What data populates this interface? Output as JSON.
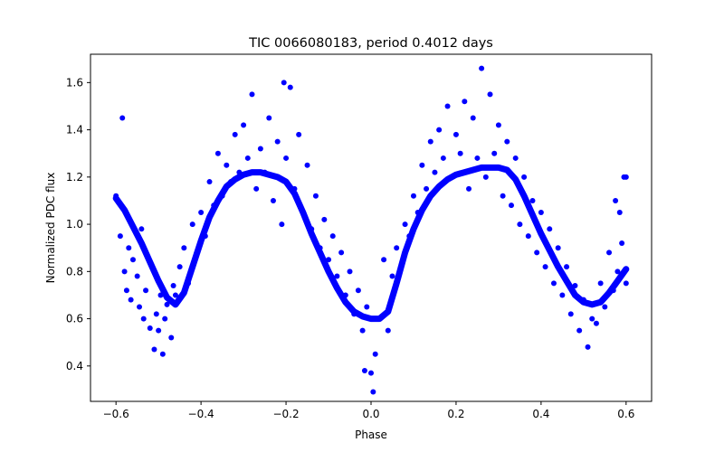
{
  "chart_data": {
    "type": "scatter",
    "title": "TIC 0066080183, period 0.4012 days",
    "xlabel": "Phase",
    "ylabel": "Normalized PDC flux",
    "xlim": [
      -0.66,
      0.66
    ],
    "ylim": [
      0.25,
      1.72
    ],
    "xticks": [
      -0.6,
      -0.4,
      -0.2,
      0.0,
      0.2,
      0.4,
      0.6
    ],
    "xtick_labels": [
      "−0.6",
      "−0.4",
      "−0.2",
      "0.0",
      "0.2",
      "0.4",
      "0.6"
    ],
    "yticks": [
      0.4,
      0.6,
      0.8,
      1.0,
      1.2,
      1.4,
      1.6
    ],
    "ytick_labels": [
      "0.4",
      "0.6",
      "0.8",
      "1.0",
      "1.2",
      "1.4",
      "1.6"
    ],
    "grid": false,
    "legend": "none",
    "marker_color": "#0000ff",
    "series": [
      {
        "kind": "scatter",
        "points": [
          [
            -0.6,
            1.12
          ],
          [
            -0.59,
            0.95
          ],
          [
            -0.585,
            1.45
          ],
          [
            -0.58,
            0.8
          ],
          [
            -0.575,
            0.72
          ],
          [
            -0.57,
            0.9
          ],
          [
            -0.565,
            0.68
          ],
          [
            -0.56,
            0.85
          ],
          [
            -0.55,
            0.78
          ],
          [
            -0.545,
            0.65
          ],
          [
            -0.54,
            0.98
          ],
          [
            -0.535,
            0.6
          ],
          [
            -0.53,
            0.72
          ],
          [
            -0.52,
            0.56
          ],
          [
            -0.515,
            0.82
          ],
          [
            -0.51,
            0.47
          ],
          [
            -0.505,
            0.62
          ],
          [
            -0.5,
            0.55
          ],
          [
            -0.495,
            0.7
          ],
          [
            -0.49,
            0.45
          ],
          [
            -0.485,
            0.6
          ],
          [
            -0.48,
            0.66
          ],
          [
            -0.47,
            0.52
          ],
          [
            -0.465,
            0.74
          ],
          [
            -0.46,
            0.7
          ],
          [
            -0.45,
            0.82
          ],
          [
            -0.44,
            0.9
          ],
          [
            -0.43,
            0.75
          ],
          [
            -0.42,
            1.0
          ],
          [
            -0.41,
            0.88
          ],
          [
            -0.4,
            1.05
          ],
          [
            -0.39,
            0.95
          ],
          [
            -0.38,
            1.18
          ],
          [
            -0.37,
            1.08
          ],
          [
            -0.36,
            1.3
          ],
          [
            -0.35,
            1.12
          ],
          [
            -0.34,
            1.25
          ],
          [
            -0.33,
            1.18
          ],
          [
            -0.32,
            1.38
          ],
          [
            -0.31,
            1.22
          ],
          [
            -0.3,
            1.42
          ],
          [
            -0.29,
            1.28
          ],
          [
            -0.28,
            1.55
          ],
          [
            -0.27,
            1.15
          ],
          [
            -0.26,
            1.32
          ],
          [
            -0.25,
            1.22
          ],
          [
            -0.24,
            1.45
          ],
          [
            -0.23,
            1.1
          ],
          [
            -0.22,
            1.35
          ],
          [
            -0.21,
            1.0
          ],
          [
            -0.205,
            1.6
          ],
          [
            -0.2,
            1.28
          ],
          [
            -0.19,
            1.58
          ],
          [
            -0.18,
            1.15
          ],
          [
            -0.17,
            1.38
          ],
          [
            -0.16,
            1.05
          ],
          [
            -0.15,
            1.25
          ],
          [
            -0.14,
            0.98
          ],
          [
            -0.13,
            1.12
          ],
          [
            -0.12,
            0.9
          ],
          [
            -0.11,
            1.02
          ],
          [
            -0.1,
            0.85
          ],
          [
            -0.09,
            0.95
          ],
          [
            -0.08,
            0.78
          ],
          [
            -0.07,
            0.88
          ],
          [
            -0.06,
            0.7
          ],
          [
            -0.05,
            0.8
          ],
          [
            -0.04,
            0.62
          ],
          [
            -0.03,
            0.72
          ],
          [
            -0.02,
            0.55
          ],
          [
            -0.015,
            0.38
          ],
          [
            -0.01,
            0.65
          ],
          [
            0.0,
            0.37
          ],
          [
            0.005,
            0.29
          ],
          [
            0.01,
            0.45
          ],
          [
            0.02,
            0.6
          ],
          [
            0.03,
            0.85
          ],
          [
            0.04,
            0.55
          ],
          [
            0.05,
            0.78
          ],
          [
            0.06,
            0.9
          ],
          [
            0.07,
            0.82
          ],
          [
            0.08,
            1.0
          ],
          [
            0.09,
            0.95
          ],
          [
            0.1,
            1.12
          ],
          [
            0.11,
            1.05
          ],
          [
            0.12,
            1.25
          ],
          [
            0.13,
            1.15
          ],
          [
            0.14,
            1.35
          ],
          [
            0.15,
            1.22
          ],
          [
            0.16,
            1.4
          ],
          [
            0.17,
            1.28
          ],
          [
            0.18,
            1.5
          ],
          [
            0.19,
            1.2
          ],
          [
            0.2,
            1.38
          ],
          [
            0.21,
            1.3
          ],
          [
            0.22,
            1.52
          ],
          [
            0.23,
            1.15
          ],
          [
            0.24,
            1.45
          ],
          [
            0.25,
            1.28
          ],
          [
            0.26,
            1.66
          ],
          [
            0.27,
            1.2
          ],
          [
            0.28,
            1.55
          ],
          [
            0.29,
            1.3
          ],
          [
            0.3,
            1.42
          ],
          [
            0.31,
            1.12
          ],
          [
            0.32,
            1.35
          ],
          [
            0.33,
            1.08
          ],
          [
            0.34,
            1.28
          ],
          [
            0.35,
            1.0
          ],
          [
            0.36,
            1.2
          ],
          [
            0.37,
            0.95
          ],
          [
            0.38,
            1.1
          ],
          [
            0.39,
            0.88
          ],
          [
            0.4,
            1.05
          ],
          [
            0.41,
            0.82
          ],
          [
            0.42,
            0.98
          ],
          [
            0.43,
            0.75
          ],
          [
            0.44,
            0.9
          ],
          [
            0.45,
            0.7
          ],
          [
            0.46,
            0.82
          ],
          [
            0.47,
            0.62
          ],
          [
            0.48,
            0.74
          ],
          [
            0.49,
            0.55
          ],
          [
            0.5,
            0.68
          ],
          [
            0.51,
            0.48
          ],
          [
            0.52,
            0.6
          ],
          [
            0.53,
            0.58
          ],
          [
            0.54,
            0.75
          ],
          [
            0.55,
            0.65
          ],
          [
            0.56,
            0.88
          ],
          [
            0.57,
            0.72
          ],
          [
            0.575,
            1.1
          ],
          [
            0.58,
            0.8
          ],
          [
            0.585,
            1.05
          ],
          [
            0.59,
            0.92
          ],
          [
            0.595,
            1.2
          ],
          [
            0.6,
            0.75
          ],
          [
            0.6,
            1.2
          ]
        ]
      },
      {
        "kind": "dense_model_curve",
        "x": [
          -0.6,
          -0.58,
          -0.56,
          -0.54,
          -0.52,
          -0.5,
          -0.48,
          -0.46,
          -0.44,
          -0.42,
          -0.4,
          -0.38,
          -0.36,
          -0.34,
          -0.32,
          -0.3,
          -0.28,
          -0.26,
          -0.24,
          -0.22,
          -0.2,
          -0.18,
          -0.16,
          -0.14,
          -0.12,
          -0.1,
          -0.08,
          -0.06,
          -0.04,
          -0.02,
          0.0,
          0.02,
          0.04,
          0.06,
          0.08,
          0.1,
          0.12,
          0.14,
          0.16,
          0.18,
          0.2,
          0.22,
          0.24,
          0.26,
          0.28,
          0.3,
          0.32,
          0.34,
          0.36,
          0.38,
          0.4,
          0.42,
          0.44,
          0.46,
          0.48,
          0.5,
          0.52,
          0.54,
          0.56,
          0.58,
          0.6
        ],
        "y": [
          1.11,
          1.06,
          0.99,
          0.92,
          0.84,
          0.76,
          0.69,
          0.66,
          0.71,
          0.82,
          0.93,
          1.03,
          1.1,
          1.16,
          1.19,
          1.21,
          1.22,
          1.22,
          1.21,
          1.2,
          1.18,
          1.13,
          1.05,
          0.96,
          0.88,
          0.8,
          0.73,
          0.67,
          0.63,
          0.61,
          0.6,
          0.6,
          0.63,
          0.75,
          0.88,
          0.98,
          1.06,
          1.12,
          1.16,
          1.19,
          1.21,
          1.22,
          1.23,
          1.24,
          1.24,
          1.24,
          1.23,
          1.19,
          1.12,
          1.04,
          0.96,
          0.89,
          0.82,
          0.76,
          0.7,
          0.67,
          0.66,
          0.67,
          0.71,
          0.76,
          0.81
        ]
      }
    ]
  }
}
